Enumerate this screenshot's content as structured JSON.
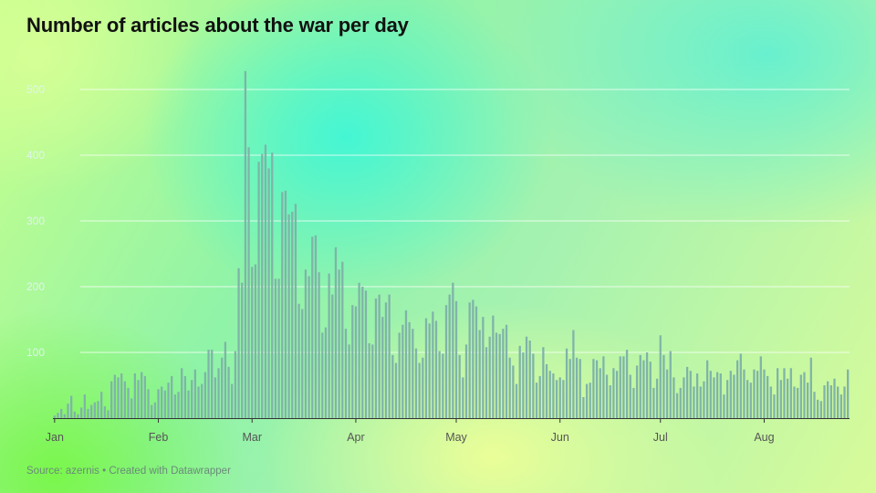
{
  "chart_data": {
    "type": "bar",
    "title": "Number of articles about the war per day",
    "source": "Source: azernis • Created with Datawrapper",
    "x_tick_labels": [
      "Jan",
      "Feb",
      "Mar",
      "Apr",
      "May",
      "Jun",
      "Jul",
      "Aug"
    ],
    "y_tick_labels": [
      "100",
      "200",
      "300",
      "400",
      "500"
    ],
    "ylim": [
      0,
      530
    ],
    "grid": true,
    "bar_color": "#7fb4a8",
    "x_start": "2022-01-01",
    "x_end": "2022-08-21",
    "values": [
      4,
      8,
      14,
      6,
      22,
      34,
      10,
      6,
      16,
      36,
      14,
      20,
      24,
      26,
      40,
      18,
      12,
      56,
      66,
      62,
      68,
      56,
      46,
      30,
      68,
      58,
      70,
      64,
      44,
      20,
      24,
      44,
      48,
      42,
      54,
      64,
      36,
      40,
      76,
      64,
      42,
      58,
      74,
      48,
      52,
      70,
      104,
      104,
      62,
      76,
      92,
      116,
      78,
      52,
      102,
      228,
      206,
      528,
      412,
      230,
      234,
      390,
      402,
      416,
      380,
      404,
      212,
      212,
      344,
      346,
      310,
      314,
      326,
      174,
      166,
      226,
      216,
      276,
      278,
      222,
      130,
      138,
      220,
      188,
      260,
      226,
      238,
      136,
      112,
      172,
      170,
      206,
      200,
      194,
      114,
      112,
      182,
      188,
      154,
      176,
      188,
      96,
      84,
      130,
      142,
      164,
      146,
      136,
      106,
      84,
      92,
      152,
      144,
      162,
      148,
      102,
      98,
      172,
      188,
      206,
      178,
      96,
      62,
      112,
      176,
      180,
      170,
      134,
      154,
      108,
      124,
      156,
      130,
      128,
      136,
      142,
      92,
      80,
      52,
      110,
      100,
      124,
      118,
      98,
      54,
      64,
      108,
      82,
      72,
      68,
      58,
      62,
      58,
      106,
      90,
      134,
      92,
      90,
      32,
      52,
      54,
      90,
      88,
      76,
      94,
      66,
      50,
      76,
      72,
      94,
      94,
      104,
      66,
      46,
      80,
      96,
      88,
      100,
      86,
      46,
      60,
      126,
      96,
      74,
      102,
      62,
      38,
      46,
      62,
      78,
      72,
      48,
      68,
      48,
      56,
      88,
      72,
      62,
      70,
      68,
      36,
      58,
      72,
      66,
      88,
      98,
      74,
      58,
      54,
      74,
      72,
      94,
      74,
      64,
      48,
      36,
      76,
      58,
      76,
      60,
      76,
      48,
      46,
      66,
      70,
      54,
      92,
      40,
      28,
      26,
      50,
      56,
      50,
      60,
      48,
      36,
      48,
      74
    ]
  }
}
